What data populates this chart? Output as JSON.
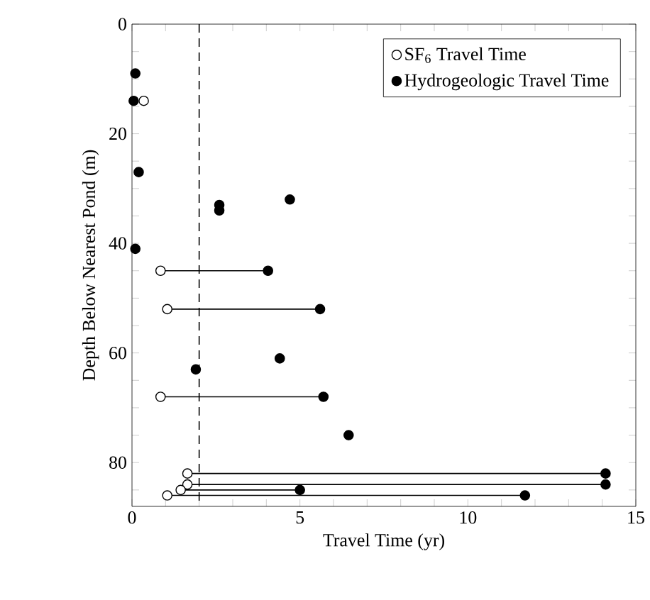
{
  "chart_data": {
    "type": "scatter",
    "xlabel": "Travel Time (yr)",
    "ylabel": "Depth Below Nearest Pond (m)",
    "xlim": [
      0,
      15
    ],
    "ylim": [
      88,
      0
    ],
    "xticks": [
      0,
      {
        "value": 1,
        "label": null
      },
      {
        "value": 2,
        "label": null
      },
      {
        "value": 3,
        "label": null
      },
      {
        "value": 4,
        "label": null
      },
      5,
      {
        "value": 6,
        "label": null
      },
      {
        "value": 7,
        "label": null
      },
      {
        "value": 8,
        "label": null
      },
      {
        "value": 9,
        "label": null
      },
      10,
      {
        "value": 11,
        "label": null
      },
      {
        "value": 12,
        "label": null
      },
      {
        "value": 13,
        "label": null
      },
      {
        "value": 14,
        "label": null
      },
      15
    ],
    "yticks": [
      0,
      {
        "value": 5,
        "label": null
      },
      {
        "value": 10,
        "label": null
      },
      {
        "value": 15,
        "label": null
      },
      20,
      {
        "value": 25,
        "label": null
      },
      {
        "value": 30,
        "label": null
      },
      {
        "value": 35,
        "label": null
      },
      40,
      {
        "value": 45,
        "label": null
      },
      {
        "value": 50,
        "label": null
      },
      {
        "value": 55,
        "label": null
      },
      60,
      {
        "value": 65,
        "label": null
      },
      {
        "value": 70,
        "label": null
      },
      {
        "value": 75,
        "label": null
      },
      80,
      {
        "value": 85,
        "label": null
      }
    ],
    "legend": "top right",
    "grid": false,
    "ref_lines": [
      {
        "axis": "x",
        "value": 2,
        "line_style": "dashed",
        "color": "#000000"
      }
    ],
    "series": [
      {
        "type": "line",
        "marker": "none",
        "color": "#000000",
        "x": [
          0.85,
          4.0
        ],
        "values": [
          45,
          45
        ]
      },
      {
        "type": "line",
        "marker": "none",
        "color": "#000000",
        "x": [
          1.05,
          5.6
        ],
        "values": [
          52,
          52
        ]
      },
      {
        "type": "line",
        "marker": "none",
        "color": "#000000",
        "x": [
          0.85,
          5.7
        ],
        "values": [
          68,
          68
        ]
      },
      {
        "type": "line",
        "marker": "none",
        "color": "#000000",
        "x": [
          1.65,
          14.1
        ],
        "values": [
          82,
          82
        ]
      },
      {
        "type": "line",
        "marker": "none",
        "color": "#000000",
        "x": [
          1.65,
          14.1
        ],
        "values": [
          84,
          84
        ]
      },
      {
        "type": "line",
        "marker": "none",
        "color": "#000000",
        "x": [
          1.45,
          5.0
        ],
        "values": [
          85,
          85
        ]
      },
      {
        "type": "line",
        "marker": "none",
        "color": "#000000",
        "x": [
          1.05,
          11.7
        ],
        "values": [
          86,
          86
        ]
      },
      {
        "name": "SF$_{6}$ Travel Time",
        "marker": "circle",
        "color": "#ffffff",
        "x": [
          0.35,
          0.85,
          1.05,
          0.85,
          1.65,
          1.65,
          1.45,
          1.05
        ],
        "values": [
          14,
          45,
          52,
          68,
          82,
          84,
          85,
          86
        ]
      },
      {
        "name": "Hydrogeologic Travel Time",
        "marker": "circle",
        "color": "#000000",
        "x": [
          0.1,
          0.05,
          0.2,
          0.1,
          2.6,
          2.6,
          4.7,
          4.05,
          5.6,
          4.4,
          1.9,
          5.7,
          6.45,
          14.1,
          14.1,
          5.0,
          11.7
        ],
        "values": [
          9,
          14,
          27,
          41,
          33,
          34,
          32,
          45,
          52,
          61,
          63,
          68,
          75,
          82,
          84,
          85,
          86
        ]
      }
    ]
  }
}
